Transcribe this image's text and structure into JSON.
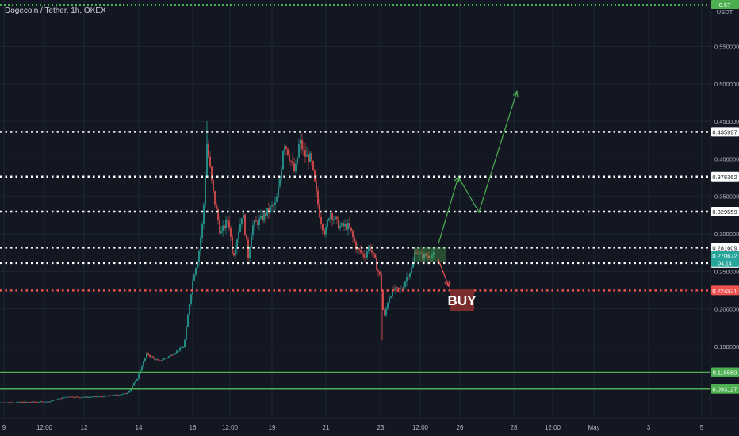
{
  "header": {
    "title": "Dogecoin / Tether, 1h, OKEX"
  },
  "chart_data": {
    "type": "candlestick",
    "ylim": [
      0.07,
      0.58
    ],
    "y_ticks": [
      0.55,
      0.5,
      0.45,
      0.4,
      0.35,
      0.3,
      0.25,
      0.2,
      0.15
    ],
    "x_ticks": [
      "9",
      "12:00",
      "12",
      "14",
      "16",
      "12:00",
      "19",
      "21",
      "23",
      "12:00",
      "26",
      "28",
      "12:00",
      "May",
      "3",
      "5"
    ],
    "currency_label": "USDT",
    "top_level_label": "0.57",
    "levels": [
      {
        "label": "0.435997",
        "value": 0.435997,
        "color": "#ffffff",
        "style": "dotted"
      },
      {
        "label": "0.376362",
        "value": 0.376362,
        "color": "#ffffff",
        "style": "dotted"
      },
      {
        "label": "0.329559",
        "value": 0.329559,
        "color": "#ffffff",
        "style": "dotted"
      },
      {
        "label": "0.281609",
        "value": 0.281609,
        "color": "#ffffff",
        "style": "dotted"
      },
      {
        "label": "0.261058",
        "value": 0.261058,
        "color": "#ffffff",
        "style": "dotted"
      },
      {
        "label": "0.224521",
        "value": 0.224521,
        "color": "#ef5350",
        "style": "dotted"
      },
      {
        "label": "0.115550",
        "value": 0.11555,
        "color": "#4caf50",
        "style": "solid"
      },
      {
        "label": "0.093127",
        "value": 0.093127,
        "color": "#4caf50",
        "style": "solid"
      }
    ],
    "current_price": {
      "value": 0.270672,
      "label": "0.270672",
      "countdown": "04:14"
    },
    "annotation": {
      "text": "BUY"
    },
    "colors": {
      "up": "#26a69a",
      "down": "#ef5350",
      "projection": "#4caf50",
      "background": "#131722",
      "grid": "#1f2434"
    }
  }
}
